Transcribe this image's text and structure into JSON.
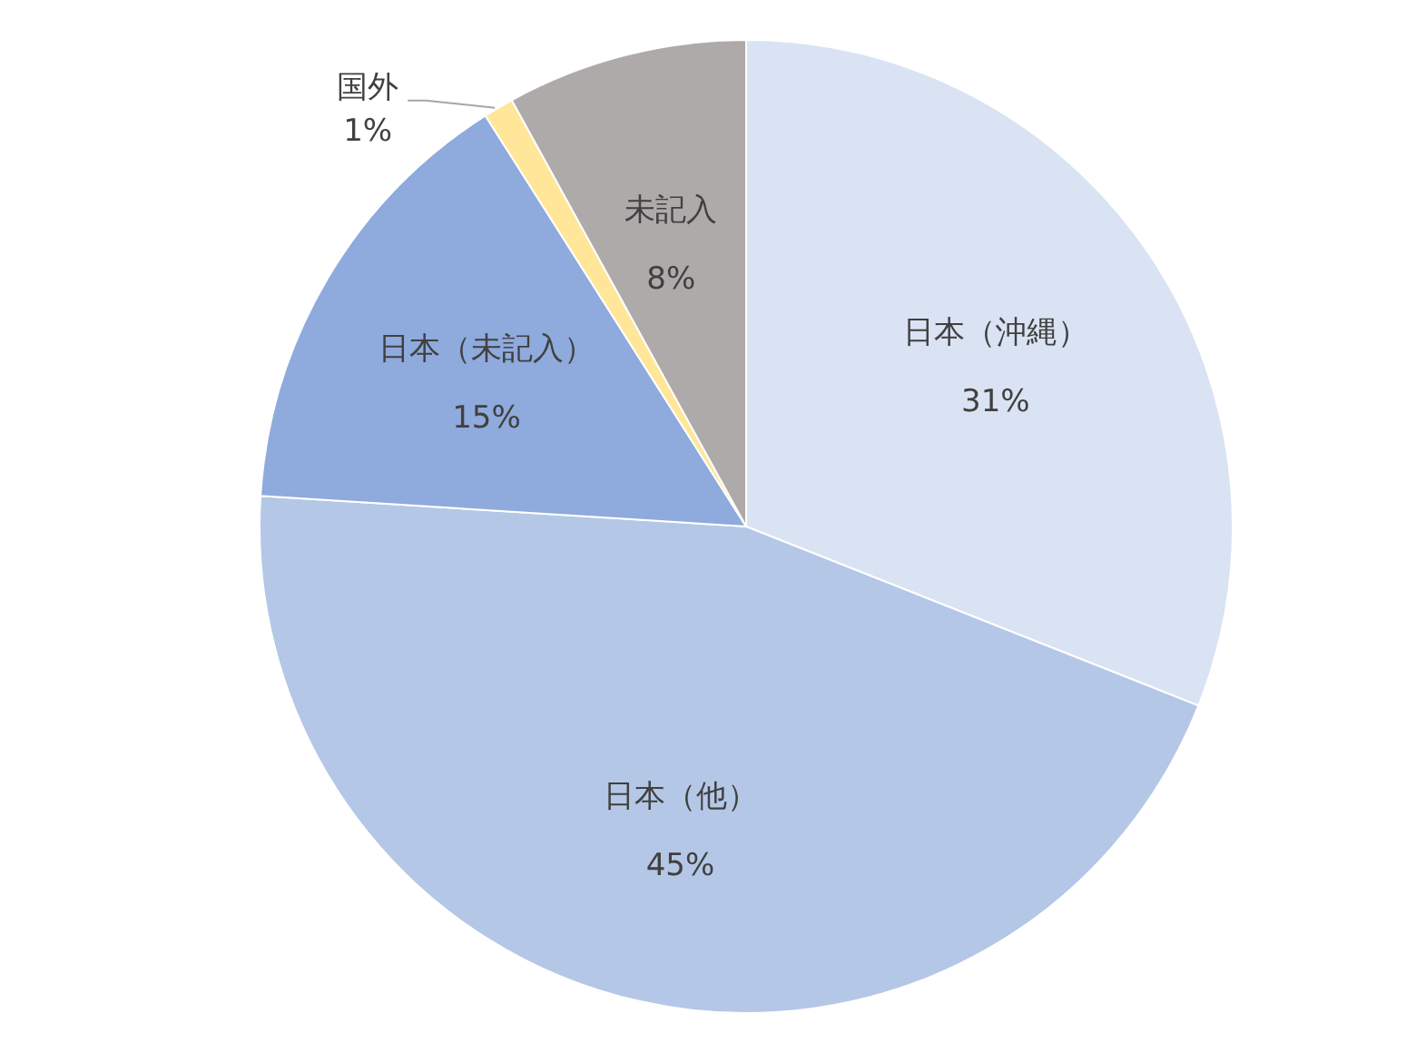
{
  "chart_data": {
    "type": "pie",
    "categories": [
      "日本（沖縄）",
      "日本（他）",
      "日本（未記入）",
      "国外",
      "未記入"
    ],
    "values": [
      31,
      45,
      15,
      1,
      8
    ],
    "colors": [
      "#dae3f3",
      "#b4c7e7",
      "#8faadc",
      "#ffe699",
      "#aeaaaa"
    ],
    "value_labels": [
      "31%",
      "45%",
      "15%",
      "1%",
      "8%"
    ]
  }
}
